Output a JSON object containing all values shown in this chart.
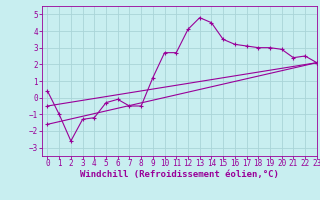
{
  "title": "",
  "xlabel": "Windchill (Refroidissement éolien,°C)",
  "ylabel": "",
  "bg_color": "#c8eef0",
  "grid_color": "#aad4d8",
  "line_color": "#990099",
  "xlim": [
    -0.5,
    23
  ],
  "ylim": [
    -3.5,
    5.5
  ],
  "yticks": [
    -3,
    -2,
    -1,
    0,
    1,
    2,
    3,
    4,
    5
  ],
  "xticks": [
    0,
    1,
    2,
    3,
    4,
    5,
    6,
    7,
    8,
    9,
    10,
    11,
    12,
    13,
    14,
    15,
    16,
    17,
    18,
    19,
    20,
    21,
    22,
    23
  ],
  "line1_x": [
    0,
    1,
    2,
    3,
    4,
    5,
    6,
    7,
    8,
    9,
    10,
    11,
    12,
    13,
    14,
    15,
    16,
    17,
    18,
    19,
    20,
    21,
    22,
    23
  ],
  "line1_y": [
    0.4,
    -1.0,
    -2.6,
    -1.3,
    -1.2,
    -0.3,
    -0.1,
    -0.5,
    -0.5,
    1.2,
    2.7,
    2.7,
    4.1,
    4.8,
    4.5,
    3.5,
    3.2,
    3.1,
    3.0,
    3.0,
    2.9,
    2.4,
    2.5,
    2.1
  ],
  "line2_x": [
    0,
    23
  ],
  "line2_y": [
    -0.5,
    2.1
  ],
  "line3_x": [
    0,
    23
  ],
  "line3_y": [
    -1.6,
    2.1
  ],
  "font_family": "monospace",
  "label_font_size": 6.5,
  "tick_font_size": 5.5,
  "marker": "+"
}
